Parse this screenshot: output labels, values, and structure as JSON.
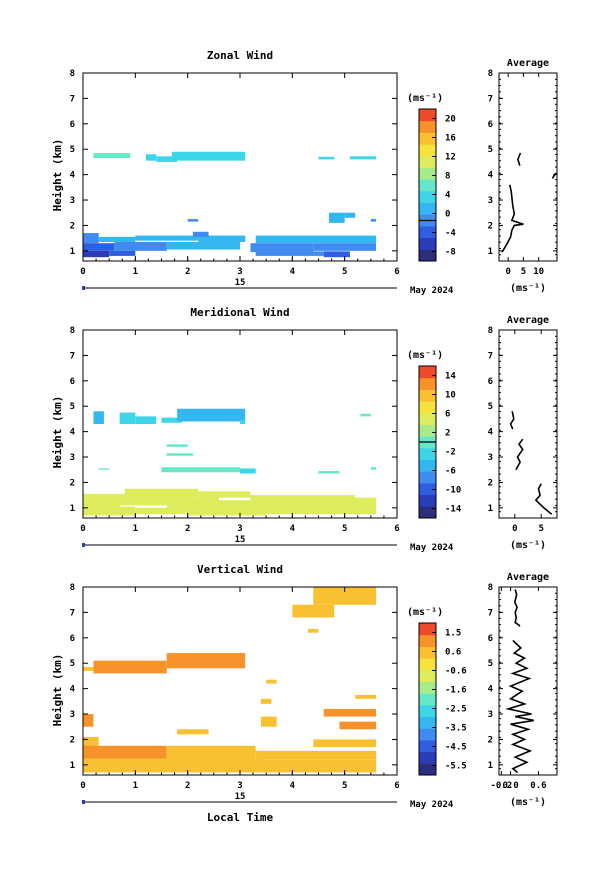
{
  "date_label": "May 2024",
  "day_label": "15",
  "xlabel": "Local Time",
  "colors": {
    "palette": [
      "#2b2d7d",
      "#2a3cb8",
      "#2f5fe0",
      "#3f8bf0",
      "#34b6f0",
      "#3dd6e8",
      "#66e8c8",
      "#a8ec8a",
      "#dcec5a",
      "#f6e23c",
      "#f9c032",
      "#f7922a",
      "#ef4a2a"
    ]
  },
  "chart_data": [
    {
      "type": "heatmap",
      "title": "Zonal Wind",
      "ylabel": "Height (km)",
      "unit": "(ms⁻¹)",
      "xlim": [
        0,
        6
      ],
      "ylim": [
        0.6,
        8
      ],
      "xticks": [
        "0",
        "1",
        "2",
        "3",
        "4",
        "5",
        "6"
      ],
      "yticks": [
        "1",
        "2",
        "3",
        "4",
        "5",
        "6",
        "7",
        "8"
      ],
      "colorbar": {
        "min": -8,
        "max": 22,
        "ticks": [
          "-8",
          "-4",
          "0",
          "4",
          "8",
          "12",
          "16",
          "20"
        ],
        "zero_line": 0
      },
      "cells": [
        {
          "x0": 0.2,
          "x1": 0.9,
          "y0": 4.65,
          "y1": 4.85,
          "v": 6
        },
        {
          "x0": 1.2,
          "x1": 1.4,
          "y0": 4.55,
          "y1": 4.8,
          "v": 5
        },
        {
          "x0": 1.4,
          "x1": 1.8,
          "y0": 4.5,
          "y1": 4.72,
          "v": 4
        },
        {
          "x0": 1.7,
          "x1": 3.1,
          "y0": 4.55,
          "y1": 4.9,
          "v": 5
        },
        {
          "x0": 4.5,
          "x1": 4.8,
          "y0": 4.6,
          "y1": 4.7,
          "v": 4
        },
        {
          "x0": 5.1,
          "x1": 5.6,
          "y0": 4.6,
          "y1": 4.72,
          "v": 4
        },
        {
          "x0": 2.0,
          "x1": 2.2,
          "y0": 2.15,
          "y1": 2.25,
          "v": 0
        },
        {
          "x0": 4.7,
          "x1": 5.0,
          "y0": 2.1,
          "y1": 2.5,
          "v": 2
        },
        {
          "x0": 5.0,
          "x1": 5.2,
          "y0": 2.3,
          "y1": 2.5,
          "v": 2
        },
        {
          "x0": 5.5,
          "x1": 5.6,
          "y0": 2.15,
          "y1": 2.25,
          "v": 0
        },
        {
          "x0": 0.0,
          "x1": 0.3,
          "y0": 1.3,
          "y1": 1.7,
          "v": 1
        },
        {
          "x0": 0.3,
          "x1": 1.0,
          "y0": 1.35,
          "y1": 1.55,
          "v": 2
        },
        {
          "x0": 1.0,
          "x1": 2.2,
          "y0": 1.4,
          "y1": 1.6,
          "v": 3
        },
        {
          "x0": 2.2,
          "x1": 3.1,
          "y0": 1.35,
          "y1": 1.6,
          "v": 2
        },
        {
          "x0": 3.3,
          "x1": 5.6,
          "y0": 1.3,
          "y1": 1.6,
          "v": 3
        },
        {
          "x0": 2.1,
          "x1": 2.4,
          "y0": 1.55,
          "y1": 1.75,
          "v": 1
        },
        {
          "x0": 0.0,
          "x1": 0.6,
          "y0": 1.0,
          "y1": 1.3,
          "v": -2
        },
        {
          "x0": 0.6,
          "x1": 1.6,
          "y0": 1.0,
          "y1": 1.35,
          "v": 1
        },
        {
          "x0": 1.6,
          "x1": 3.0,
          "y0": 1.05,
          "y1": 1.35,
          "v": 2
        },
        {
          "x0": 3.2,
          "x1": 4.4,
          "y0": 0.95,
          "y1": 1.3,
          "v": 1
        },
        {
          "x0": 4.4,
          "x1": 5.6,
          "y0": 1.0,
          "y1": 1.3,
          "v": -1
        },
        {
          "x0": 0.0,
          "x1": 0.5,
          "y0": 0.75,
          "y1": 1.0,
          "v": -4
        },
        {
          "x0": 0.5,
          "x1": 1.0,
          "y0": 0.8,
          "y1": 1.0,
          "v": -2
        },
        {
          "x0": 3.3,
          "x1": 4.6,
          "y0": 0.8,
          "y1": 0.98,
          "v": 0
        },
        {
          "x0": 4.6,
          "x1": 5.1,
          "y0": 0.75,
          "y1": 0.98,
          "v": -3
        }
      ]
    },
    {
      "type": "heatmap",
      "title": "Meridional Wind",
      "ylabel": "Height (km)",
      "unit": "(ms⁻¹)",
      "xlim": [
        0,
        6
      ],
      "ylim": [
        0.6,
        8
      ],
      "xticks": [
        "0",
        "1",
        "2",
        "3",
        "4",
        "5",
        "6"
      ],
      "yticks": [
        "1",
        "2",
        "3",
        "4",
        "5",
        "6",
        "7",
        "8"
      ],
      "colorbar": {
        "min": -16,
        "max": 16,
        "ticks": [
          "-14",
          "-10",
          "-6",
          "-2",
          "2",
          "6",
          "10",
          "14"
        ],
        "zero_line": 0
      },
      "cells": [
        {
          "x0": 0.2,
          "x1": 0.4,
          "y0": 4.3,
          "y1": 4.8,
          "v": -4
        },
        {
          "x0": 0.7,
          "x1": 1.0,
          "y0": 4.3,
          "y1": 4.75,
          "v": -3
        },
        {
          "x0": 1.0,
          "x1": 1.4,
          "y0": 4.3,
          "y1": 4.6,
          "v": -2
        },
        {
          "x0": 1.5,
          "x1": 1.9,
          "y0": 4.35,
          "y1": 4.55,
          "v": -3
        },
        {
          "x0": 1.8,
          "x1": 3.1,
          "y0": 4.4,
          "y1": 4.9,
          "v": -4
        },
        {
          "x0": 3.0,
          "x1": 3.1,
          "y0": 4.3,
          "y1": 4.45,
          "v": -3
        },
        {
          "x0": 5.3,
          "x1": 5.5,
          "y0": 4.6,
          "y1": 4.7,
          "v": 0
        },
        {
          "x0": 1.6,
          "x1": 2.0,
          "y0": 3.4,
          "y1": 3.5,
          "v": -1
        },
        {
          "x0": 1.6,
          "x1": 2.1,
          "y0": 3.05,
          "y1": 3.15,
          "v": -1
        },
        {
          "x0": 1.5,
          "x1": 3.0,
          "y0": 2.4,
          "y1": 2.6,
          "v": -1
        },
        {
          "x0": 3.0,
          "x1": 3.3,
          "y0": 2.35,
          "y1": 2.55,
          "v": -2
        },
        {
          "x0": 4.5,
          "x1": 4.9,
          "y0": 2.35,
          "y1": 2.45,
          "v": -1
        },
        {
          "x0": 5.5,
          "x1": 5.6,
          "y0": 2.5,
          "y1": 2.6,
          "v": 0
        },
        {
          "x0": 0.3,
          "x1": 0.5,
          "y0": 2.5,
          "y1": 2.55,
          "v": -1
        },
        {
          "x0": 0.0,
          "x1": 0.8,
          "y0": 1.35,
          "y1": 1.55,
          "v": 4
        },
        {
          "x0": 0.8,
          "x1": 2.2,
          "y0": 1.4,
          "y1": 1.75,
          "v": 5
        },
        {
          "x0": 2.2,
          "x1": 3.2,
          "y0": 1.4,
          "y1": 1.65,
          "v": 4
        },
        {
          "x0": 3.2,
          "x1": 5.2,
          "y0": 1.3,
          "y1": 1.5,
          "v": 4
        },
        {
          "x0": 0.0,
          "x1": 0.7,
          "y0": 1.05,
          "y1": 1.35,
          "v": 6
        },
        {
          "x0": 0.7,
          "x1": 1.6,
          "y0": 1.1,
          "y1": 1.4,
          "v": 4
        },
        {
          "x0": 1.6,
          "x1": 2.6,
          "y0": 1.0,
          "y1": 1.4,
          "v": 5
        },
        {
          "x0": 2.6,
          "x1": 4.2,
          "y0": 1.0,
          "y1": 1.3,
          "v": 4
        },
        {
          "x0": 4.2,
          "x1": 5.6,
          "y0": 1.0,
          "y1": 1.4,
          "v": 4
        },
        {
          "x0": 0.0,
          "x1": 1.0,
          "y0": 0.7,
          "y1": 1.05,
          "v": 5
        },
        {
          "x0": 1.0,
          "x1": 2.0,
          "y0": 0.75,
          "y1": 1.0,
          "v": 6
        },
        {
          "x0": 2.0,
          "x1": 3.5,
          "y0": 0.7,
          "y1": 1.0,
          "v": 5
        },
        {
          "x0": 3.5,
          "x1": 5.6,
          "y0": 0.75,
          "y1": 1.0,
          "v": 4
        }
      ]
    },
    {
      "type": "heatmap",
      "title": "Vertical Wind",
      "ylabel": "Height (km)",
      "unit": "(ms⁻¹)",
      "xlim": [
        0,
        6
      ],
      "ylim": [
        0.6,
        8
      ],
      "xticks": [
        "0",
        "1",
        "2",
        "3",
        "4",
        "5",
        "6"
      ],
      "yticks": [
        "1",
        "2",
        "3",
        "4",
        "5",
        "6",
        "7",
        "8"
      ],
      "colorbar": {
        "min": -6,
        "max": 2,
        "ticks": [
          "-5.5",
          "-4.5",
          "-3.5",
          "-2.5",
          "-1.6",
          "-0.6",
          "0.6",
          "1.5"
        ]
      },
      "cells": [
        {
          "x0": 4.4,
          "x1": 5.6,
          "y0": 7.3,
          "y1": 8.0,
          "v": 0.5
        },
        {
          "x0": 4.0,
          "x1": 4.8,
          "y0": 6.8,
          "y1": 7.3,
          "v": 0.4
        },
        {
          "x0": 4.3,
          "x1": 4.5,
          "y0": 6.2,
          "y1": 6.35,
          "v": 0.4
        },
        {
          "x0": 0.2,
          "x1": 1.6,
          "y0": 4.6,
          "y1": 5.1,
          "v": 0.8
        },
        {
          "x0": 1.6,
          "x1": 3.1,
          "y0": 4.8,
          "y1": 5.4,
          "v": 0.8
        },
        {
          "x0": 0.0,
          "x1": 0.2,
          "y0": 4.7,
          "y1": 4.85,
          "v": 0.7
        },
        {
          "x0": 3.5,
          "x1": 3.7,
          "y0": 4.2,
          "y1": 4.35,
          "v": 0.6
        },
        {
          "x0": 3.4,
          "x1": 3.6,
          "y0": 3.4,
          "y1": 3.6,
          "v": 0.6
        },
        {
          "x0": 5.2,
          "x1": 5.6,
          "y0": 3.6,
          "y1": 3.75,
          "v": 0.5
        },
        {
          "x0": 4.6,
          "x1": 5.6,
          "y0": 2.9,
          "y1": 3.2,
          "v": 0.8
        },
        {
          "x0": 4.9,
          "x1": 5.6,
          "y0": 2.4,
          "y1": 2.7,
          "v": 0.9
        },
        {
          "x0": 3.4,
          "x1": 3.7,
          "y0": 2.5,
          "y1": 2.9,
          "v": 0.7
        },
        {
          "x0": 0.0,
          "x1": 0.2,
          "y0": 2.5,
          "y1": 3.0,
          "v": 1.3
        },
        {
          "x0": 0.0,
          "x1": 0.3,
          "y0": 1.7,
          "y1": 2.1,
          "v": 0.7
        },
        {
          "x0": 1.8,
          "x1": 2.4,
          "y0": 2.2,
          "y1": 2.4,
          "v": 0.6
        },
        {
          "x0": 4.4,
          "x1": 5.6,
          "y0": 1.7,
          "y1": 2.0,
          "v": 0.5
        },
        {
          "x0": 0.0,
          "x1": 1.6,
          "y0": 1.25,
          "y1": 1.75,
          "v": 0.8
        },
        {
          "x0": 1.6,
          "x1": 3.3,
          "y0": 1.25,
          "y1": 1.75,
          "v": 0.7
        },
        {
          "x0": 3.3,
          "x1": 5.6,
          "y0": 1.2,
          "y1": 1.55,
          "v": 0.6
        },
        {
          "x0": 0.0,
          "x1": 1.5,
          "y0": 0.7,
          "y1": 1.25,
          "v": 0.5
        },
        {
          "x0": 1.5,
          "x1": 3.4,
          "y0": 0.7,
          "y1": 1.25,
          "v": 0.7
        },
        {
          "x0": 3.4,
          "x1": 5.6,
          "y0": 0.7,
          "y1": 1.2,
          "v": 0.6
        }
      ]
    },
    {
      "type": "line",
      "title": "Average",
      "ylabel": "",
      "xlabel": "(ms⁻¹)",
      "xlim": [
        -3,
        16
      ],
      "ylim": [
        0.6,
        8
      ],
      "xticks": [
        {
          "v": 0,
          "label": "0"
        },
        {
          "v": 5,
          "label": "5"
        },
        {
          "v": 10,
          "label": "10"
        }
      ],
      "yticks": [
        "1",
        "2",
        "3",
        "4",
        "5",
        "6",
        "7",
        "8"
      ],
      "series": [
        {
          "points": [
            [
              4,
              4.85
            ],
            [
              3.2,
              4.6
            ],
            [
              3.8,
              4.35
            ]
          ]
        },
        {
          "points": [
            [
              15.5,
              4.05
            ],
            [
              14.5,
              3.85
            ]
          ]
        },
        {
          "points": [
            [
              0.5,
              3.6
            ],
            [
              1,
              3.35
            ],
            [
              1.5,
              2.8
            ],
            [
              2,
              2.45
            ],
            [
              1.2,
              2.2
            ],
            [
              5,
              2.05
            ],
            [
              2,
              2.0
            ],
            [
              1.2,
              1.8
            ],
            [
              0.8,
              1.55
            ],
            [
              -0.5,
              1.25
            ],
            [
              -2,
              0.95
            ]
          ]
        }
      ]
    },
    {
      "type": "line",
      "title": "Average",
      "ylabel": "",
      "xlabel": "(ms⁻¹)",
      "xlim": [
        -3,
        8
      ],
      "ylim": [
        0.6,
        8
      ],
      "xticks": [
        {
          "v": 0,
          "label": "0"
        },
        {
          "v": 5,
          "label": "5"
        }
      ],
      "yticks": [
        "1",
        "2",
        "3",
        "4",
        "5",
        "6",
        "7",
        "8"
      ],
      "series": [
        {
          "points": [
            [
              -0.5,
              4.8
            ],
            [
              -0.2,
              4.5
            ],
            [
              -0.8,
              4.3
            ],
            [
              -0.4,
              4.1
            ]
          ]
        },
        {
          "points": [
            [
              1.5,
              3.7
            ],
            [
              0.8,
              3.5
            ],
            [
              1.5,
              3.3
            ],
            [
              0.5,
              3.0
            ],
            [
              1.0,
              2.8
            ],
            [
              0.2,
              2.5
            ]
          ]
        },
        {
          "points": [
            [
              5,
              1.95
            ],
            [
              4.5,
              1.75
            ],
            [
              4.8,
              1.5
            ],
            [
              4.0,
              1.3
            ],
            [
              5.5,
              1.0
            ],
            [
              7,
              0.75
            ]
          ]
        }
      ]
    },
    {
      "type": "line",
      "title": "Average",
      "ylabel": "",
      "xlabel": "(ms⁻¹)",
      "xlim": [
        -0.25,
        1.0
      ],
      "ylim": [
        0.6,
        8
      ],
      "xticks": [
        {
          "v": -0.2,
          "label": "-0.2"
        },
        {
          "v": 0.0,
          "label": "0.0"
        },
        {
          "v": 0.6,
          "label": "0.6"
        }
      ],
      "yticks": [
        "1",
        "2",
        "3",
        "4",
        "5",
        "6",
        "7",
        "8"
      ],
      "series": [
        {
          "points": [
            [
              0.1,
              7.9
            ],
            [
              0.13,
              7.7
            ],
            [
              0.09,
              7.4
            ],
            [
              0.14,
              7.2
            ],
            [
              0.1,
              7.0
            ],
            [
              0.12,
              6.8
            ],
            [
              0.1,
              6.6
            ],
            [
              0.18,
              6.5
            ],
            [
              0.2,
              6.45
            ]
          ]
        },
        {
          "points": [
            [
              0.05,
              5.9
            ],
            [
              0.22,
              5.6
            ],
            [
              0.08,
              5.4
            ],
            [
              0.3,
              5.2
            ],
            [
              0.12,
              5.0
            ],
            [
              0.35,
              4.8
            ],
            [
              0.05,
              4.6
            ],
            [
              0.4,
              4.4
            ],
            [
              0.0,
              4.1
            ],
            [
              0.25,
              3.9
            ],
            [
              0.0,
              3.6
            ],
            [
              0.3,
              3.4
            ],
            [
              -0.05,
              3.2
            ],
            [
              0.45,
              3.0
            ],
            [
              0.1,
              2.9
            ],
            [
              0.5,
              2.75
            ],
            [
              0.0,
              2.6
            ],
            [
              0.38,
              2.4
            ],
            [
              0.05,
              2.2
            ],
            [
              0.3,
              2.0
            ],
            [
              0.05,
              1.8
            ],
            [
              0.42,
              1.55
            ],
            [
              0.1,
              1.3
            ],
            [
              0.35,
              1.1
            ],
            [
              0.05,
              0.85
            ],
            [
              0.15,
              0.7
            ]
          ]
        }
      ]
    }
  ]
}
